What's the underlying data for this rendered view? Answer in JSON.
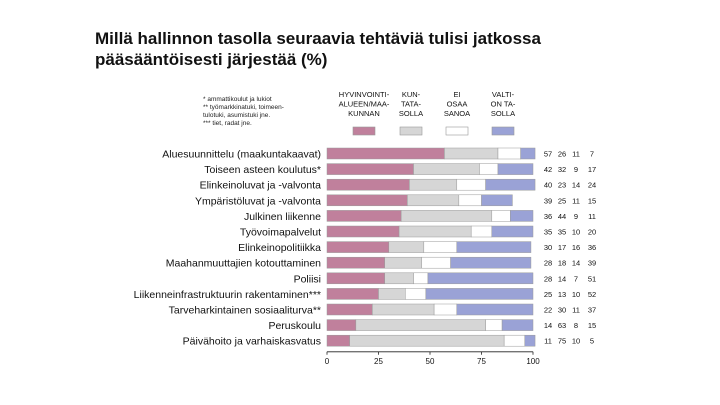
{
  "title": {
    "line1": "Millä hallinnon tasolla seuraavia tehtäviä tulisi jatkossa",
    "line2": "pääsääntöisesti järjestää (%)"
  },
  "notes": [
    "* ammattikoulut ja lukiot",
    "** työmarkkinatuki, toimeen-",
    "tulotuki, asumistuki jne.",
    "*** tiet, radat jne."
  ],
  "colors": {
    "hyvinvointialue": "#c0809c",
    "kunta": "#d6d6d6",
    "eos": "#ffffff",
    "valtio": "#9aa2d6"
  },
  "chart_data": {
    "type": "bar",
    "orientation": "horizontal",
    "stacked": true,
    "xlim": [
      0,
      100
    ],
    "xticks": [
      "0",
      "25",
      "50",
      "75",
      "100"
    ],
    "legend_position": "top",
    "categories": [
      "Aluesuunnittelu (maakuntakaavat)",
      "Toiseen asteen koulutus*",
      "Elinkeinoluvat ja -valvonta",
      "Ympäristöluvat ja -valvonta",
      "Julkinen liikenne",
      "Työvoimapalvelut",
      "Elinkeinopolitiikka",
      "Maahanmuuttajien kotouttaminen",
      "Poliisi",
      "Liikenneinfrastruktuurin rakentaminen***",
      "Tarveharkintainen sosiaaliturva**",
      "Peruskoulu",
      "Päivähoito ja varhaiskasvatus"
    ],
    "series": [
      {
        "name": [
          "HYVINVOINTI-",
          "ALUEEN/MAA-",
          "KUNNAN"
        ],
        "color": "#c0809c",
        "values": [
          57,
          42,
          40,
          39,
          36,
          35,
          30,
          28,
          28,
          25,
          22,
          14,
          11
        ]
      },
      {
        "name": [
          "KUN-",
          "TATA-",
          "SOLLA"
        ],
        "color": "#d6d6d6",
        "values": [
          26,
          32,
          23,
          25,
          44,
          35,
          17,
          18,
          14,
          13,
          30,
          63,
          75
        ]
      },
      {
        "name": [
          "EI",
          "OSAA",
          "SANOA"
        ],
        "color": "#ffffff",
        "values": [
          11,
          9,
          14,
          11,
          9,
          10,
          16,
          14,
          7,
          10,
          11,
          8,
          10
        ]
      },
      {
        "name": [
          "VALTI-",
          "ON TA-",
          "SOLLA"
        ],
        "color": "#9aa2d6",
        "values": [
          7,
          17,
          24,
          15,
          11,
          20,
          36,
          39,
          51,
          52,
          37,
          15,
          5
        ]
      }
    ]
  }
}
